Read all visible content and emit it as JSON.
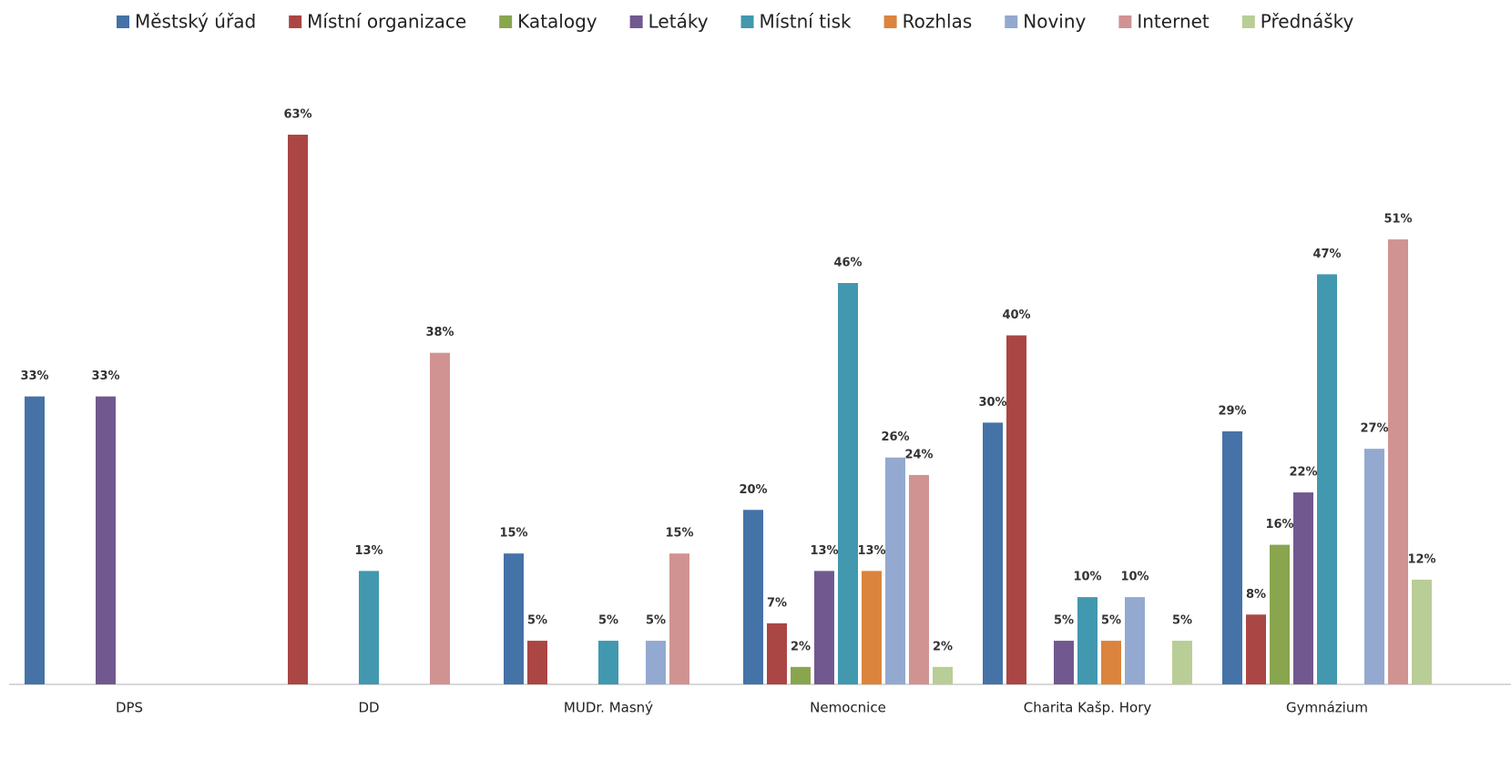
{
  "chart_data": {
    "type": "bar",
    "categories": [
      "DPS",
      "DD",
      "MUDr. Masný",
      "Nemocnice",
      "Charita Kašp. Hory",
      "Gymnázium"
    ],
    "series": [
      {
        "name": "Městský úřad",
        "color": "#4572a7",
        "values": [
          33,
          null,
          15,
          20,
          30,
          29
        ],
        "value_labels": [
          "33%",
          null,
          "15%",
          "20%",
          "30%",
          "29%"
        ]
      },
      {
        "name": "Místní organizace",
        "color": "#aa4643",
        "values": [
          null,
          63,
          5,
          7,
          40,
          8
        ],
        "value_labels": [
          null,
          "63%",
          "5%",
          "7%",
          "40%",
          "8%"
        ]
      },
      {
        "name": "Katalogy",
        "color": "#89a54e",
        "values": [
          null,
          null,
          null,
          2,
          null,
          16
        ],
        "value_labels": [
          null,
          null,
          null,
          "2%",
          null,
          "16%"
        ]
      },
      {
        "name": "Letáky",
        "color": "#71588f",
        "values": [
          33,
          null,
          null,
          13,
          5,
          22
        ],
        "value_labels": [
          "33%",
          null,
          null,
          "13%",
          "5%",
          "22%"
        ]
      },
      {
        "name": "Místní tisk",
        "color": "#4198af",
        "values": [
          null,
          13,
          5,
          46,
          10,
          47
        ],
        "value_labels": [
          null,
          "13%",
          "5%",
          "46%",
          "10%",
          "47%"
        ]
      },
      {
        "name": "Rozhlas",
        "color": "#db843d",
        "values": [
          null,
          null,
          null,
          13,
          5,
          null
        ],
        "value_labels": [
          null,
          null,
          null,
          "13%",
          "5%",
          null
        ]
      },
      {
        "name": "Noviny",
        "color": "#93a9cf",
        "values": [
          null,
          null,
          5,
          26,
          10,
          27
        ],
        "value_labels": [
          null,
          null,
          "5%",
          "26%",
          "10%",
          "27%"
        ]
      },
      {
        "name": "Internet",
        "color": "#d19392",
        "values": [
          null,
          38,
          15,
          24,
          null,
          51
        ],
        "value_labels": [
          null,
          "38%",
          "15%",
          "24%",
          null,
          "51%"
        ]
      },
      {
        "name": "Přednášky",
        "color": "#b9cd96",
        "values": [
          null,
          null,
          null,
          2,
          5,
          12
        ],
        "value_labels": [
          null,
          null,
          null,
          "2%",
          "5%",
          "12%"
        ]
      }
    ]
  }
}
